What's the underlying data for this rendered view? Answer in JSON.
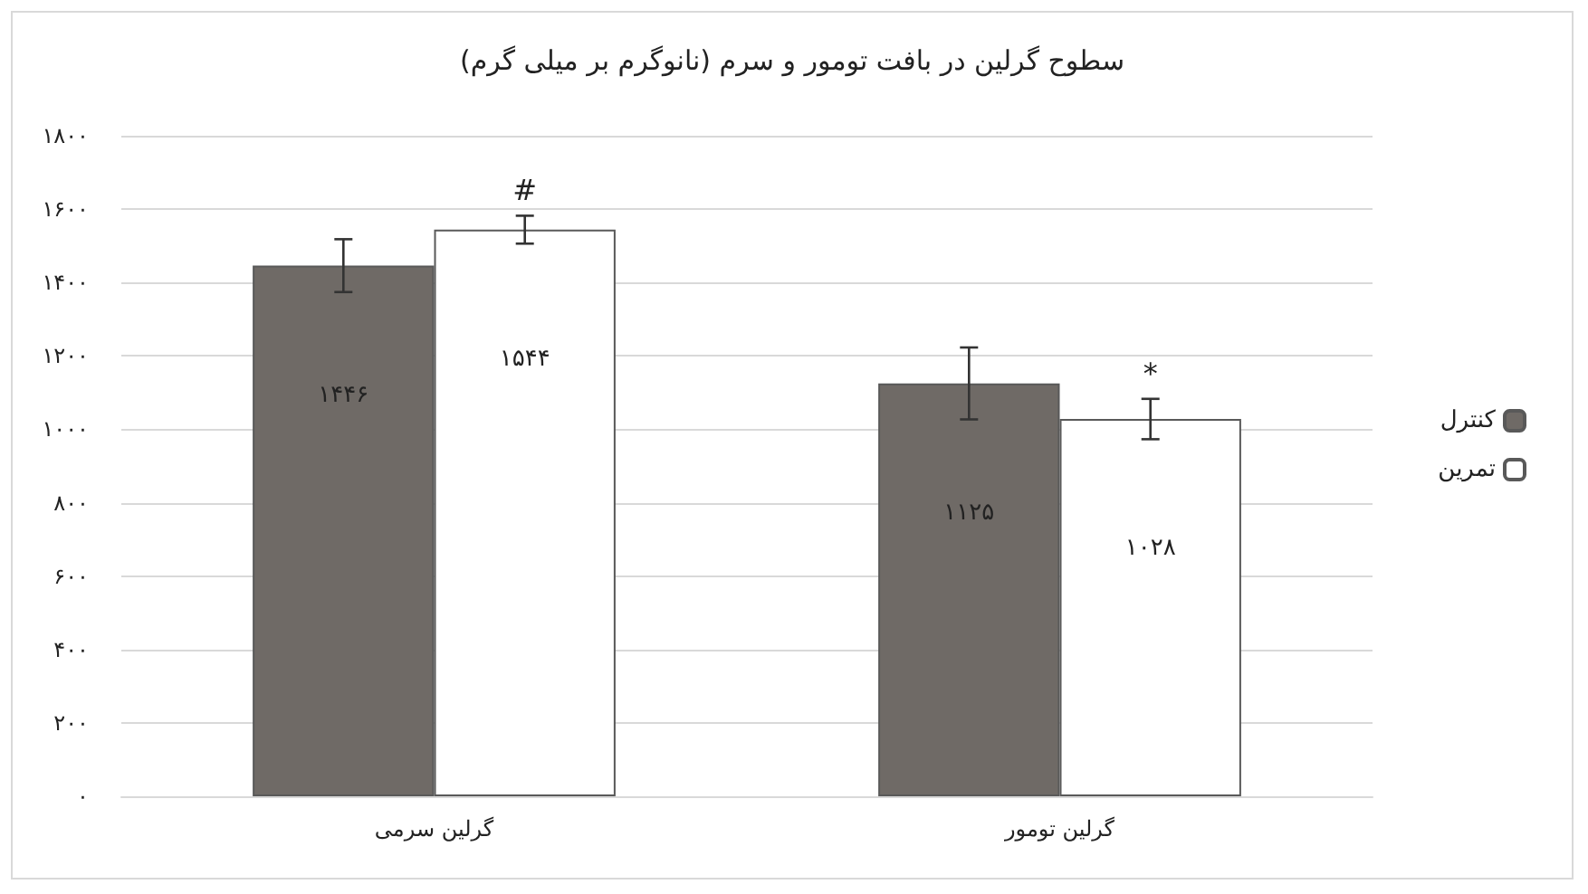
{
  "chart_data": {
    "type": "bar",
    "title": "سطوح گرلین در بافت تومور و سرم (نانوگرم بر میلی گرم)",
    "categories": [
      "گرلین سرمی",
      "گرلین تومور"
    ],
    "series": [
      {
        "name": "کنترل",
        "color": "#6f6a66",
        "values": [
          1446,
          1125
        ],
        "errors": [
          72,
          98
        ],
        "value_labels": [
          "۱۴۴۶",
          "۱۱۲۵"
        ]
      },
      {
        "name": "تمرین",
        "color": "#ffffff",
        "values": [
          1544,
          1028
        ],
        "errors": [
          38,
          55
        ],
        "value_labels": [
          "۱۵۴۴",
          "۱۰۲۸"
        ]
      }
    ],
    "ylim": [
      0,
      1800
    ],
    "yticks": [
      {
        "value": 0,
        "label": "۰"
      },
      {
        "value": 200,
        "label": "۲۰۰"
      },
      {
        "value": 400,
        "label": "۴۰۰"
      },
      {
        "value": 600,
        "label": "۶۰۰"
      },
      {
        "value": 800,
        "label": "۸۰۰"
      },
      {
        "value": 1000,
        "label": "۱۰۰۰"
      },
      {
        "value": 1200,
        "label": "۱۲۰۰"
      },
      {
        "value": 1400,
        "label": "۱۴۰۰"
      },
      {
        "value": 1600,
        "label": "۱۶۰۰"
      },
      {
        "value": 1800,
        "label": "۱۸۰۰"
      }
    ],
    "annotations": [
      "#",
      "*"
    ],
    "grid": "y",
    "legend": "right"
  }
}
